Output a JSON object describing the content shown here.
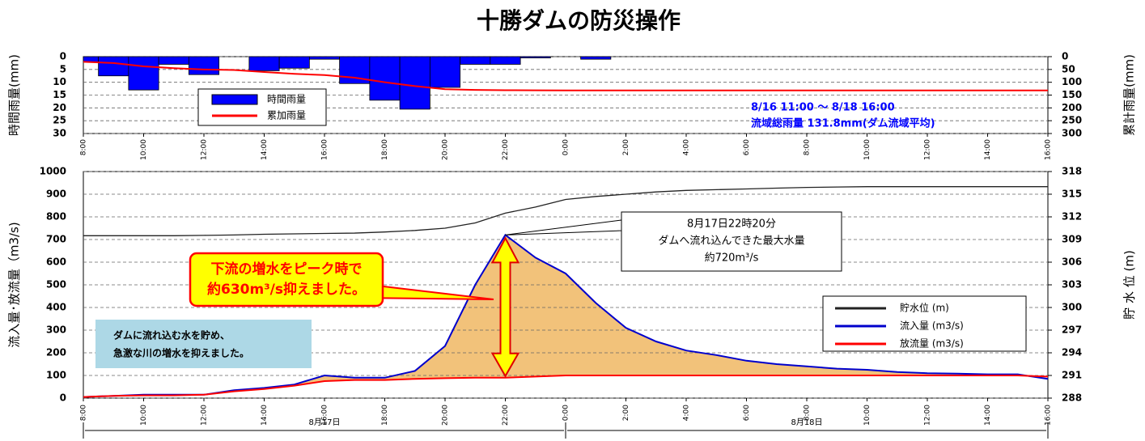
{
  "chart_data": [
    {
      "type": "histogram",
      "title": "十勝ダムの防災操作",
      "ylabel": "時間雨量(mm)",
      "y2label": "累計雨量(mm)",
      "bins": [
        0,
        0.5,
        1.5,
        2.5,
        3.5,
        4.5,
        5.5,
        6.5,
        7.5,
        8.5,
        9.5,
        10.5,
        11.5,
        12.5,
        13.5,
        14.5,
        15.5,
        16.5,
        17.5
      ],
      "series": [
        {
          "name": "時間雨量",
          "color": "#0000ff",
          "values": [
            2,
            7.5,
            13,
            3,
            7,
            0,
            5.5,
            4.5,
            1,
            10.5,
            17,
            20.5,
            12,
            3,
            3,
            0.5,
            0,
            1
          ]
        },
        {
          "name": "累加雨量",
          "color": "#ff0000",
          "axis": "y2",
          "x": [
            0,
            1,
            2,
            3,
            4,
            5,
            6,
            7,
            8,
            9,
            10,
            11,
            12,
            13,
            14,
            15,
            16,
            32
          ],
          "values": [
            20,
            25,
            38,
            45,
            50,
            52,
            60,
            67,
            72,
            82,
            100,
            115,
            127,
            130,
            131,
            131.5,
            131.8,
            131.8
          ]
        }
      ],
      "xlim": [
        0,
        32
      ],
      "xticks": [
        {
          "value": 0,
          "label": "8:00"
        },
        {
          "value": 2,
          "label": "10:00"
        },
        {
          "value": 4,
          "label": "12:00"
        },
        {
          "value": 6,
          "label": "14:00"
        },
        {
          "value": 8,
          "label": "16:00"
        },
        {
          "value": 10,
          "label": "18:00"
        },
        {
          "value": 12,
          "label": "20:00"
        },
        {
          "value": 14,
          "label": "22:00"
        },
        {
          "value": 16,
          "label": "0:00"
        },
        {
          "value": 18,
          "label": "2:00"
        },
        {
          "value": 20,
          "label": "4:00"
        },
        {
          "value": 22,
          "label": "6:00"
        },
        {
          "value": 24,
          "label": "8:00"
        },
        {
          "value": 26,
          "label": "10:00"
        },
        {
          "value": 28,
          "label": "12:00"
        },
        {
          "value": 30,
          "label": "14:00"
        },
        {
          "value": 32,
          "label": "16:00"
        }
      ],
      "ylim": [
        30,
        0
      ],
      "yticks": [
        0,
        5,
        10,
        15,
        20,
        25,
        30
      ],
      "y2lim": [
        300,
        0
      ],
      "y2ticks": [
        0,
        50,
        100,
        150,
        200,
        250,
        300
      ],
      "annotations": [
        "8/16 11:00 ～ 8/18 16:00",
        "流域総雨量 131.8mm(ダム流域平均)"
      ],
      "grid": true
    },
    {
      "type": "line",
      "ylabel": "流入量･放流量（m3/s)",
      "y2label": "貯 水 位 (m)",
      "x": [
        0,
        1,
        2,
        3,
        4,
        5,
        6,
        7,
        8,
        9,
        10,
        11,
        12,
        13,
        14,
        15,
        16,
        17,
        18,
        19,
        20,
        21,
        22,
        23,
        24,
        25,
        26,
        27,
        28,
        29,
        30,
        31,
        32
      ],
      "series": [
        {
          "name": "貯水位 (m)",
          "color": "#222222",
          "axis": "y2",
          "values": [
            309.5,
            309.5,
            309.5,
            309.5,
            309.55,
            309.6,
            309.7,
            309.75,
            309.8,
            309.85,
            310,
            310.2,
            310.5,
            311.2,
            312.5,
            313.3,
            314.3,
            314.7,
            315,
            315.3,
            315.5,
            315.6,
            315.7,
            315.8,
            315.9,
            315.95,
            316,
            316,
            316,
            316,
            316,
            316,
            316
          ]
        },
        {
          "name": "流入量 (m3/s)",
          "color": "#0000cc",
          "values": [
            5,
            10,
            15,
            15,
            15,
            35,
            45,
            60,
            100,
            90,
            90,
            120,
            230,
            500,
            720,
            620,
            550,
            420,
            310,
            250,
            210,
            190,
            165,
            150,
            140,
            130,
            125,
            115,
            110,
            108,
            105,
            105,
            85
          ]
        },
        {
          "name": "放流量 (m3/s)",
          "color": "#ff0000",
          "values": [
            5,
            10,
            12,
            12,
            15,
            30,
            40,
            55,
            75,
            80,
            80,
            85,
            88,
            90,
            90,
            95,
            100,
            100,
            100,
            100,
            100,
            100,
            100,
            100,
            100,
            100,
            100,
            100,
            100,
            100,
            100,
            100,
            95
          ]
        }
      ],
      "xlim": [
        0,
        32
      ],
      "xticks": [
        {
          "value": 0,
          "label": "8:00"
        },
        {
          "value": 2,
          "label": "10:00"
        },
        {
          "value": 4,
          "label": "12:00"
        },
        {
          "value": 6,
          "label": "14:00"
        },
        {
          "value": 8,
          "label": "16:00"
        },
        {
          "value": 10,
          "label": "18:00"
        },
        {
          "value": 12,
          "label": "20:00"
        },
        {
          "value": 14,
          "label": "22:00"
        },
        {
          "value": 16,
          "label": "0:00"
        },
        {
          "value": 18,
          "label": "2:00"
        },
        {
          "value": 20,
          "label": "4:00"
        },
        {
          "value": 22,
          "label": "6:00"
        },
        {
          "value": 24,
          "label": "8:00"
        },
        {
          "value": 26,
          "label": "10:00"
        },
        {
          "value": 28,
          "label": "12:00"
        },
        {
          "value": 30,
          "label": "14:00"
        },
        {
          "value": 32,
          "label": "16:00"
        }
      ],
      "ylim": [
        0,
        1000
      ],
      "yticks": [
        0,
        100,
        200,
        300,
        400,
        500,
        600,
        700,
        800,
        900,
        1000
      ],
      "y2lim": [
        288,
        318
      ],
      "y2ticks": [
        288,
        291,
        294,
        297,
        300,
        303,
        306,
        309,
        312,
        315,
        318
      ],
      "dates": [
        "8月17日",
        "8月18日"
      ],
      "callout": [
        "8月17日22時20分",
        "ダムへ流れ込んできた最大水量",
        "約720m³/s"
      ],
      "highlight": [
        "下流の増水をピーク時で",
        "約630m³/s抑えました。"
      ],
      "note": [
        "ダムに流れ込む水を貯め、",
        "急激な川の増水を抑えました。"
      ],
      "peak_index": 14,
      "grid": true
    }
  ]
}
